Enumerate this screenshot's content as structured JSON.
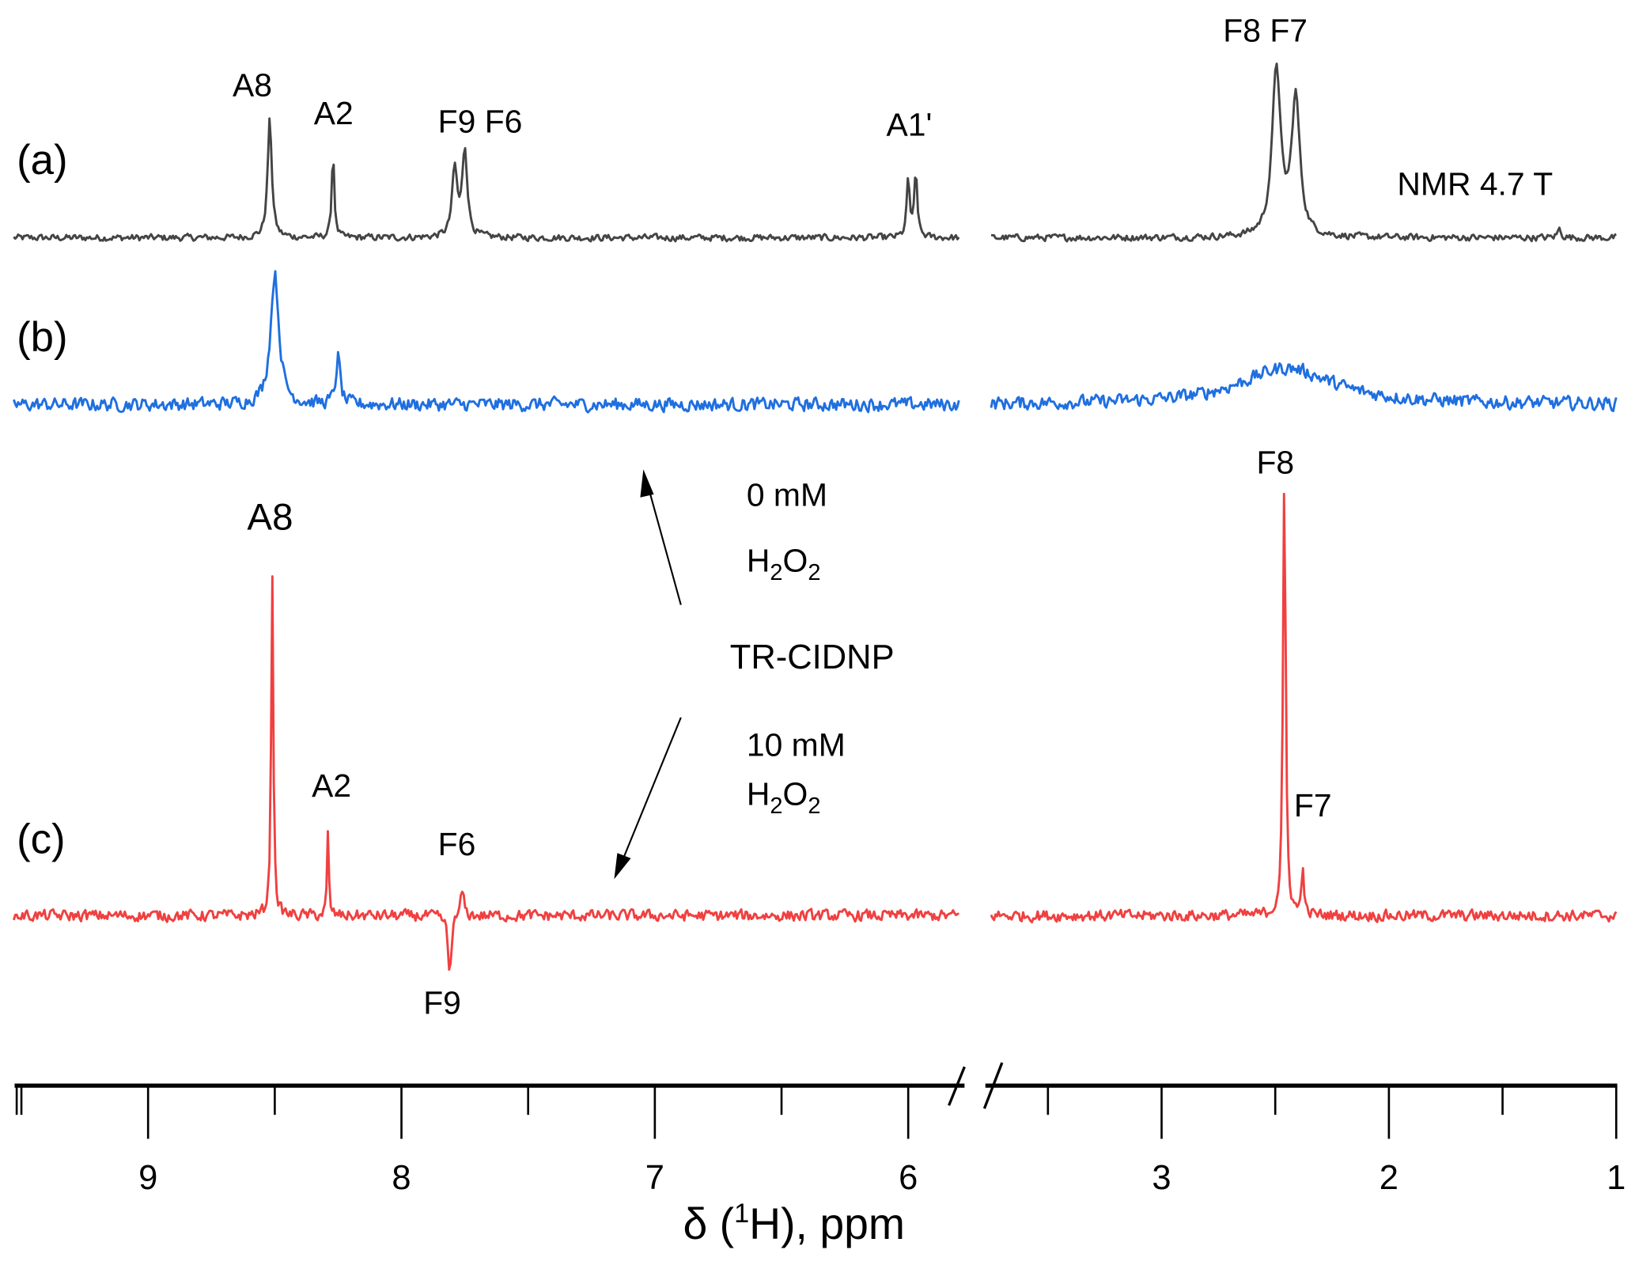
{
  "chart_data": {
    "type": "line",
    "title": "",
    "xlabel": "δ (1H), ppm",
    "xlabel_parts": {
      "pre": "δ (",
      "sup": "1",
      "post": "H), ppm"
    },
    "ylabel": "",
    "x_axis": {
      "reversed": true,
      "broken": true,
      "segments": [
        {
          "range": [
            9.53,
            5.8
          ],
          "ticks": [
            "9",
            "8",
            "7",
            "6"
          ],
          "tick_values": [
            9,
            8,
            7,
            6
          ],
          "minor_step": 0.5
        },
        {
          "range": [
            3.75,
            1.0
          ],
          "ticks": [
            "3",
            "2",
            "1"
          ],
          "tick_values": [
            3,
            2,
            1
          ],
          "minor_step": 0.5
        }
      ]
    },
    "series": [
      {
        "name": "(a)",
        "label": "(a)",
        "color": "#444444",
        "noise": 0.7,
        "peaks": [
          {
            "ppm": 8.52,
            "intensity": 27,
            "width": 0.01
          },
          {
            "ppm": 8.27,
            "intensity": 20,
            "width": 0.006
          },
          {
            "ppm": 7.79,
            "intensity": 15.5,
            "width": 0.012
          },
          {
            "ppm": 7.75,
            "intensity": 20,
            "width": 0.012
          },
          {
            "ppm": 6.0,
            "intensity": 13.4,
            "width": 0.007
          },
          {
            "ppm": 5.97,
            "intensity": 14.6,
            "width": 0.007
          },
          {
            "ppm": 2.495,
            "intensity": 38.5,
            "width": 0.022
          },
          {
            "ppm": 2.41,
            "intensity": 31.3,
            "width": 0.022
          },
          {
            "ppm": 1.25,
            "intensity": 2,
            "width": 0.01
          }
        ]
      },
      {
        "name": "(b)",
        "label": "(b)",
        "color": "#1f6fe0",
        "noise": 1.4,
        "peaks": [
          {
            "ppm": 8.5,
            "intensity": 30,
            "width": 0.02
          },
          {
            "ppm": 8.25,
            "intensity": 11,
            "width": 0.01
          },
          {
            "ppm": 2.45,
            "intensity": 8.4,
            "width": 0.25
          }
        ]
      },
      {
        "name": "(c)",
        "label": "(c)",
        "color": "#f04040",
        "noise": 1.2,
        "peaks": [
          {
            "ppm": 8.51,
            "intensity": 79,
            "width": 0.005
          },
          {
            "ppm": 8.29,
            "intensity": 18.7,
            "width": 0.004
          },
          {
            "ppm": 7.76,
            "intensity": 6,
            "width": 0.008
          },
          {
            "ppm": 7.81,
            "intensity": -13.6,
            "width": 0.008
          },
          {
            "ppm": 2.46,
            "intensity": 100,
            "width": 0.007
          },
          {
            "ppm": 2.38,
            "intensity": 13,
            "width": 0.005
          }
        ]
      }
    ],
    "annotations": {
      "a": {
        "A8": "A8",
        "A2": "A2",
        "F9F6": "F9 F6",
        "A1p": "A1'",
        "F8F7": "F8 F7",
        "field": "NMR 4.7 T"
      },
      "c": {
        "A8": "A8",
        "A2": "A2",
        "F6": "F6",
        "F9": "F9",
        "F8": "F8",
        "F7": "F7"
      },
      "center": {
        "conc0": "0 mM",
        "conc10": "10 mM",
        "h2o2": {
          "H": "H",
          "sub1": "2",
          "O": "O",
          "sub2": "2"
        },
        "method": "TR-CIDNP"
      }
    }
  }
}
